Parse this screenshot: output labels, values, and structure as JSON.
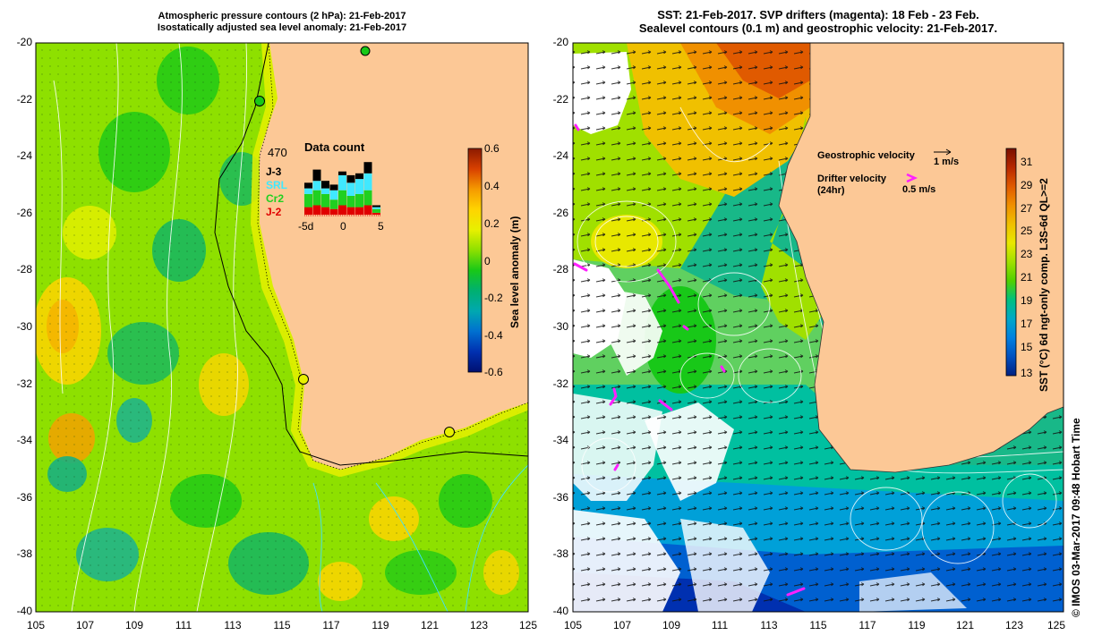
{
  "left_panel": {
    "title_line1": "Atmospheric pressure contours (2 hPa): 21-Feb-2017",
    "title_line2": "Isostatically adjusted sea level anomaly: 21-Feb-2017",
    "y_ticks": [
      "-20",
      "-22",
      "-24",
      "-26",
      "-28",
      "-30",
      "-32",
      "-34",
      "-36",
      "-38",
      "-40"
    ],
    "x_ticks": [
      "105",
      "107",
      "109",
      "111",
      "113",
      "115",
      "117",
      "119",
      "121",
      "123",
      "125"
    ],
    "colorbar": {
      "label": "Sea level anomaly (m)",
      "ticks": [
        "0.6",
        "0.4",
        "0.2",
        "0",
        "-0.2",
        "-0.4",
        "-0.6"
      ],
      "colors": [
        "#8b1a00",
        "#d84000",
        "#f59a00",
        "#ffd400",
        "#e8f000",
        "#8ee000",
        "#18c818",
        "#00b070",
        "#00a8b0",
        "#0070d0",
        "#0030b0",
        "#001070"
      ]
    },
    "data_count": {
      "total": "470",
      "title": "Data count",
      "legend": [
        {
          "label": "J-3",
          "color": "#000000"
        },
        {
          "label": "SRL",
          "color": "#40e8ff"
        },
        {
          "label": "Cr2",
          "color": "#20d020"
        },
        {
          "label": "J-2",
          "color": "#e00000"
        }
      ],
      "axis_ticks": [
        "-5d",
        "0",
        "5"
      ],
      "bars": [
        {
          "j3": 3,
          "srl": 3,
          "cr2": 7,
          "j2": 4
        },
        {
          "j3": 6,
          "srl": 5,
          "cr2": 8,
          "j2": 5
        },
        {
          "j3": 4,
          "srl": 3,
          "cr2": 7,
          "j2": 4
        },
        {
          "j3": 3,
          "srl": 5,
          "cr2": 5,
          "j2": 3
        },
        {
          "j3": 2,
          "srl": 8,
          "cr2": 8,
          "j2": 5
        },
        {
          "j3": 4,
          "srl": 7,
          "cr2": 6,
          "j2": 4
        },
        {
          "j3": 3,
          "srl": 8,
          "cr2": 7,
          "j2": 4
        },
        {
          "j3": 6,
          "srl": 9,
          "cr2": 8,
          "j2": 5
        },
        {
          "j3": 1,
          "srl": 1,
          "cr2": 2,
          "j2": 1
        }
      ]
    }
  },
  "right_panel": {
    "title_line1": "SST: 21-Feb-2017. SVP drifters (magenta): 18 Feb - 23 Feb.",
    "title_line2": "Sealevel contours (0.1 m) and geostrophic velocity: 21-Feb-2017.",
    "y_ticks": [
      "-20",
      "-22",
      "-24",
      "-26",
      "-28",
      "-30",
      "-32",
      "-34",
      "-36",
      "-38",
      "-40"
    ],
    "x_ticks": [
      "105",
      "107",
      "109",
      "111",
      "113",
      "115",
      "117",
      "119",
      "121",
      "123",
      "125"
    ],
    "legend": {
      "geostrophic": "Geostrophic velocity",
      "geostrophic_scale": "1 m/s",
      "drifter_line1": "Drifter velocity",
      "drifter_line2": "(24hr)",
      "drifter_scale": "0.5 m/s",
      "drifter_color": "#ff20ff"
    },
    "colorbar": {
      "label": "SST (°C) 6d ngt-only comp. L3S-6d QL>=2",
      "ticks": [
        "31",
        "29",
        "27",
        "25",
        "23",
        "21",
        "19",
        "17",
        "15",
        "13"
      ],
      "colors": [
        "#7a1000",
        "#b82800",
        "#e05a00",
        "#f09000",
        "#f0c000",
        "#e8e800",
        "#a0e000",
        "#50d000",
        "#00c080",
        "#00a8c8",
        "#0080e0",
        "#0050c0",
        "#002080"
      ]
    },
    "credit": "© IMOS 03-Mar-2017 09:48 Hobart Time"
  },
  "colors": {
    "land": "#fcc896",
    "frame": "#000000",
    "contour_white": "#ffffff",
    "contour_cyan": "#40e0ff"
  }
}
